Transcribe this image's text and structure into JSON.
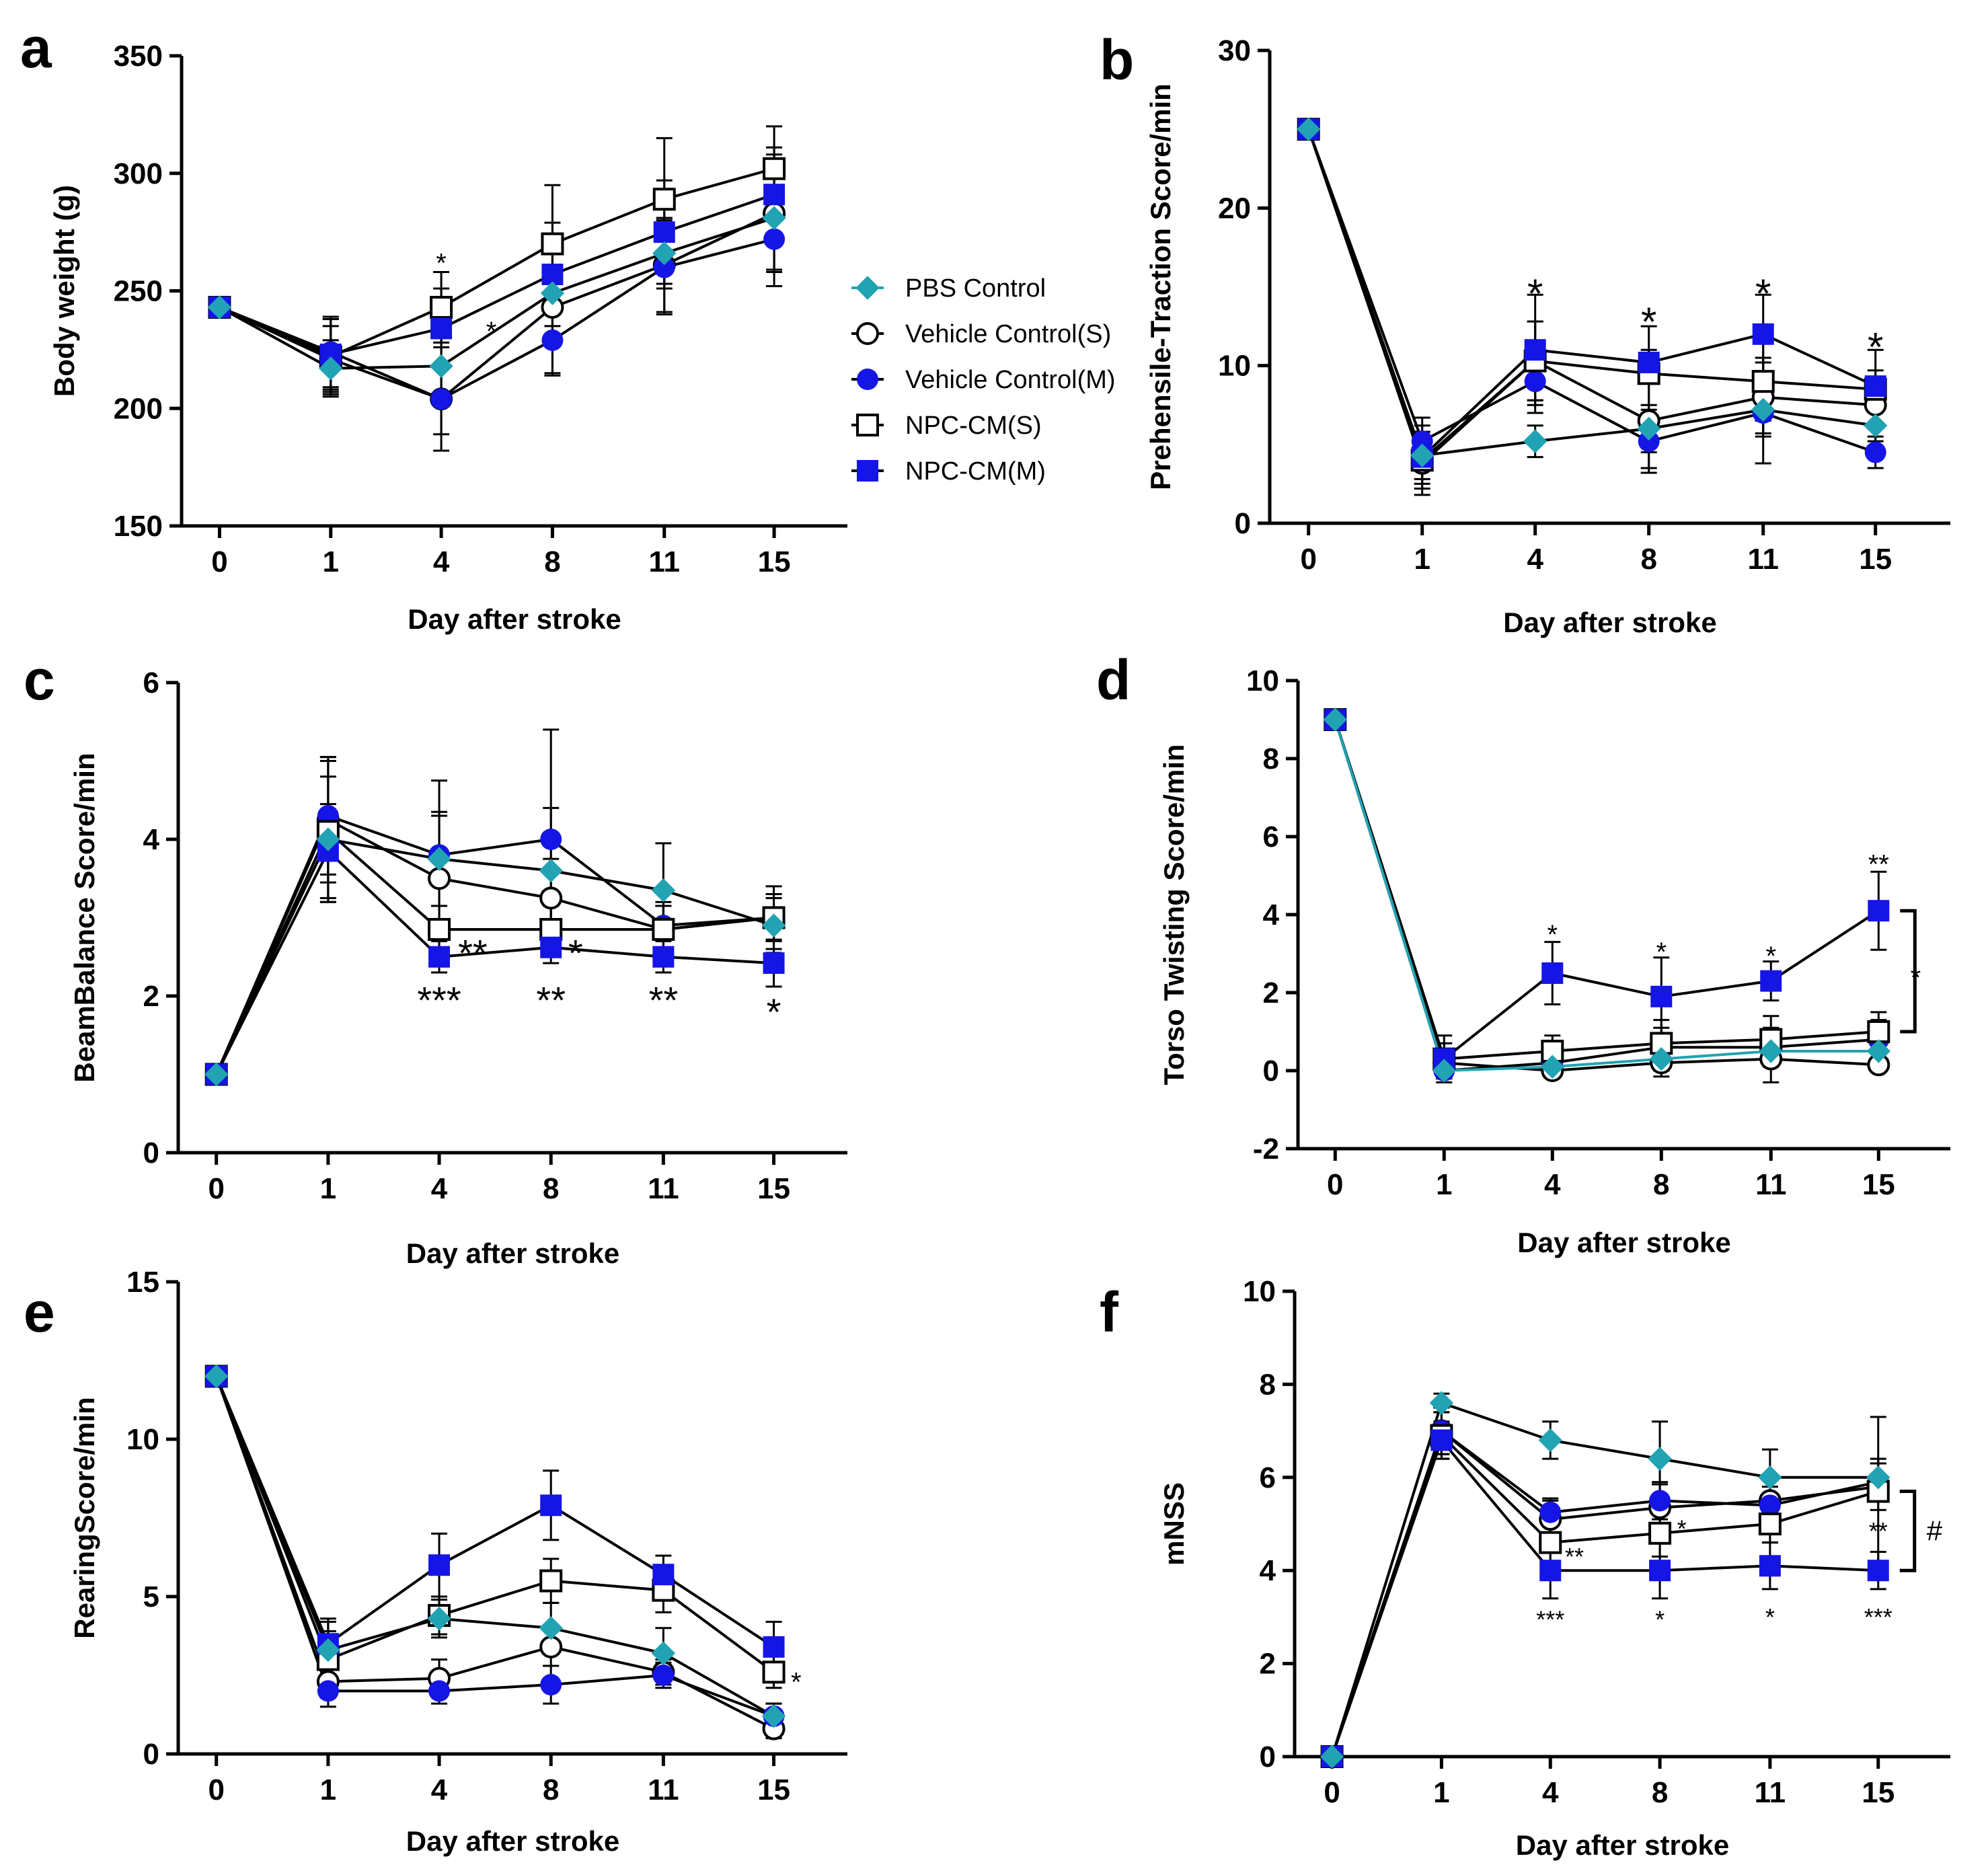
{
  "legend": [
    {
      "key": "pbs",
      "label": "PBS Control"
    },
    {
      "key": "vcs",
      "label": "Vehicle Control(S)"
    },
    {
      "key": "vcm",
      "label": "Vehicle Control(M)"
    },
    {
      "key": "npcs",
      "label": "NPC-CM(S)"
    },
    {
      "key": "npcm",
      "label": "NPC-CM(M)"
    }
  ],
  "series_styles": {
    "pbs": {
      "color": "#22a3b3",
      "marker": "diamond"
    },
    "vcs": {
      "color": "#000000",
      "marker": "open-circle"
    },
    "vcm": {
      "color": "#1515e6",
      "marker": "filled-circle"
    },
    "npcs": {
      "color": "#000000",
      "marker": "open-square"
    },
    "npcm": {
      "color": "#1515e6",
      "marker": "filled-square"
    }
  },
  "chart_data": [
    {
      "id": "a",
      "panel_label": "a",
      "type": "line",
      "xlabel": "Day after stroke",
      "ylabel": "Body weight (g)",
      "categories": [
        "0",
        "1",
        "4",
        "8",
        "11",
        "15"
      ],
      "ylim": [
        150,
        350
      ],
      "yticks": [
        150,
        200,
        250,
        300,
        350
      ],
      "series": [
        {
          "key": "pbs",
          "values": [
            243,
            217,
            218,
            249,
            266,
            281
          ],
          "errors": [
            0,
            12,
            15,
            18,
            15,
            22
          ]
        },
        {
          "key": "vcs",
          "values": [
            243,
            221,
            204,
            243,
            261,
            283
          ],
          "errors": [
            0,
            14,
            22,
            28,
            20,
            25
          ]
        },
        {
          "key": "vcm",
          "values": [
            243,
            224,
            204,
            229,
            260,
            272
          ],
          "errors": [
            0,
            15,
            15,
            15,
            20,
            20
          ]
        },
        {
          "key": "npcs",
          "values": [
            243,
            222,
            243,
            270,
            289,
            302
          ],
          "errors": [
            0,
            16,
            15,
            25,
            26,
            18
          ]
        },
        {
          "key": "npcm",
          "values": [
            243,
            223,
            234,
            257,
            275,
            291
          ],
          "errors": [
            0,
            15,
            17,
            22,
            22,
            20
          ]
        }
      ],
      "annotations": [
        {
          "text": "*",
          "x": "4",
          "y": 262,
          "size": 40
        },
        {
          "text": "*",
          "x": "4",
          "y": 233,
          "size": 40,
          "dx": 0.45
        }
      ]
    },
    {
      "id": "b",
      "panel_label": "b",
      "type": "line",
      "xlabel": "Day after stroke",
      "ylabel": "Prehensile-Traction Score/min",
      "categories": [
        "0",
        "1",
        "4",
        "8",
        "11",
        "15"
      ],
      "ylim": [
        0,
        30
      ],
      "yticks": [
        0,
        10,
        20,
        30
      ],
      "series": [
        {
          "key": "pbs",
          "values": [
            25,
            4.3,
            5.2,
            6.0,
            7.2,
            6.2
          ],
          "errors": [
            0,
            1.5,
            1.0,
            1.5,
            1.5,
            1.0
          ]
        },
        {
          "key": "vcs",
          "values": [
            25,
            3.8,
            10.3,
            6.5,
            8.0,
            7.5
          ],
          "errors": [
            0,
            2.0,
            2.5,
            3.0,
            2.5,
            1.5
          ]
        },
        {
          "key": "vcm",
          "values": [
            25,
            5.2,
            9.0,
            5.2,
            7.0,
            4.5
          ],
          "errors": [
            0,
            1.5,
            2.0,
            2.0,
            3.2,
            1.0
          ]
        },
        {
          "key": "npcs",
          "values": [
            25,
            4.0,
            10.3,
            9.5,
            9.0,
            8.5
          ],
          "errors": [
            0,
            1.5,
            2.5,
            3.0,
            2.5,
            2.5
          ]
        },
        {
          "key": "npcm",
          "values": [
            25,
            4.2,
            11.0,
            10.2,
            12.0,
            8.7
          ],
          "errors": [
            0,
            2.0,
            3.5,
            0.8,
            2.5,
            1.0
          ]
        }
      ],
      "annotations": [
        {
          "text": "*",
          "x": "4",
          "y": 14.6,
          "size": 60
        },
        {
          "text": "*",
          "x": "8",
          "y": 12.8,
          "size": 60
        },
        {
          "text": "*",
          "x": "11",
          "y": 14.6,
          "size": 60
        },
        {
          "text": "*",
          "x": "15",
          "y": 11.2,
          "size": 60
        }
      ]
    },
    {
      "id": "c",
      "panel_label": "c",
      "type": "line",
      "xlabel": "Day after stroke",
      "ylabel": "BeamBalance Score/min",
      "categories": [
        "0",
        "1",
        "4",
        "8",
        "11",
        "15"
      ],
      "ylim": [
        0,
        6
      ],
      "yticks": [
        0,
        2,
        4,
        6
      ],
      "series": [
        {
          "key": "pbs",
          "values": [
            1,
            4.0,
            3.75,
            3.6,
            3.35,
            2.9
          ],
          "errors": [
            0,
            0.8,
            0.6,
            0.8,
            0.6,
            0.35
          ]
        },
        {
          "key": "vcs",
          "values": [
            1,
            4.25,
            3.5,
            3.25,
            2.85,
            3.0
          ],
          "errors": [
            0,
            0.8,
            0.8,
            0.5,
            0.3,
            0.3
          ]
        },
        {
          "key": "vcm",
          "values": [
            1,
            4.3,
            3.8,
            4.0,
            2.9,
            3.0
          ],
          "errors": [
            0,
            0.75,
            0.95,
            1.4,
            0.3,
            0.4
          ]
        },
        {
          "key": "npcs",
          "values": [
            1,
            4.1,
            2.85,
            2.85,
            2.85,
            3.0
          ],
          "errors": [
            0,
            0.9,
            0.3,
            0.3,
            0.3,
            0.3
          ]
        },
        {
          "key": "npcm",
          "values": [
            1,
            3.85,
            2.5,
            2.62,
            2.5,
            2.42
          ],
          "errors": [
            0,
            0.6,
            0.2,
            0.2,
            0.2,
            0.3
          ]
        }
      ],
      "annotations": [
        {
          "text": "**",
          "x": "4",
          "y": 2.55,
          "size": 56,
          "dx": 0.3
        },
        {
          "text": "*",
          "x": "8",
          "y": 2.55,
          "size": 56,
          "dx": 0.22
        },
        {
          "text": "***",
          "x": "4",
          "y": 1.95,
          "size": 56
        },
        {
          "text": "**",
          "x": "8",
          "y": 1.95,
          "size": 56
        },
        {
          "text": "**",
          "x": "11",
          "y": 1.95,
          "size": 56
        },
        {
          "text": "*",
          "x": "15",
          "y": 1.8,
          "size": 56
        }
      ]
    },
    {
      "id": "d",
      "panel_label": "d",
      "type": "line",
      "xlabel": "Day after stroke",
      "ylabel": "Torso Twisting Score/min",
      "categories": [
        "0",
        "1",
        "4",
        "8",
        "11",
        "15"
      ],
      "ylim": [
        -2,
        10
      ],
      "yticks": [
        -2,
        0,
        2,
        4,
        6,
        8,
        10
      ],
      "series": [
        {
          "key": "pbs",
          "values": [
            9,
            0.0,
            0.1,
            0.3,
            0.5,
            0.5
          ],
          "errors": [
            0,
            0.2,
            0.2,
            0.3,
            0.3,
            0.3
          ]
        },
        {
          "key": "vcs",
          "values": [
            9,
            0.2,
            0.0,
            0.2,
            0.3,
            0.15
          ],
          "errors": [
            0,
            0.2,
            0.1,
            0.35,
            0.6,
            0.1
          ]
        },
        {
          "key": "vcm",
          "values": [
            9,
            0.0,
            0.2,
            0.6,
            0.6,
            0.8
          ],
          "errors": [
            0,
            0.2,
            0.2,
            0.5,
            0.5,
            0.5
          ]
        },
        {
          "key": "npcs",
          "values": [
            9,
            0.3,
            0.5,
            0.7,
            0.8,
            1.0
          ],
          "errors": [
            0,
            0.6,
            0.4,
            0.6,
            0.6,
            0.5
          ]
        },
        {
          "key": "npcm",
          "values": [
            9,
            0.3,
            2.5,
            1.9,
            2.3,
            4.1
          ],
          "errors": [
            0,
            0.4,
            0.8,
            1.0,
            0.5,
            1.0
          ]
        }
      ],
      "annotations": [
        {
          "text": "*",
          "x": "4",
          "y": 3.5,
          "size": 40
        },
        {
          "text": "*",
          "x": "8",
          "y": 3.05,
          "size": 40
        },
        {
          "text": "*",
          "x": "11",
          "y": 2.95,
          "size": 40
        },
        {
          "text": "**",
          "x": "15",
          "y": 5.3,
          "size": 40
        },
        {
          "text": "*",
          "x": "15",
          "y": 2.4,
          "size": 40,
          "dx": 0.34
        }
      ],
      "bracket": {
        "x": "15",
        "y_top": 4.1,
        "y_bottom": 1.0
      }
    },
    {
      "id": "e",
      "panel_label": "e",
      "type": "line",
      "xlabel": "Day after stroke",
      "ylabel": "RearingScore/min",
      "categories": [
        "0",
        "1",
        "4",
        "8",
        "11",
        "15"
      ],
      "ylim": [
        0,
        15
      ],
      "yticks": [
        0,
        5,
        10,
        15
      ],
      "series": [
        {
          "key": "pbs",
          "values": [
            12,
            3.3,
            4.3,
            4.0,
            3.2,
            1.2
          ],
          "errors": [
            0,
            0.6,
            0.6,
            0.8,
            0.8,
            0.4
          ]
        },
        {
          "key": "vcs",
          "values": [
            12,
            2.3,
            2.4,
            3.4,
            2.6,
            0.8
          ],
          "errors": [
            0,
            0.5,
            0.6,
            0.6,
            0.4,
            0.3
          ]
        },
        {
          "key": "vcm",
          "values": [
            12,
            2.0,
            2.0,
            2.2,
            2.5,
            1.2
          ],
          "errors": [
            0,
            0.5,
            0.4,
            0.6,
            0.4,
            0.4
          ]
        },
        {
          "key": "npcs",
          "values": [
            12,
            3.0,
            4.4,
            5.5,
            5.2,
            2.6
          ],
          "errors": [
            0,
            1.2,
            0.6,
            0.7,
            0.7,
            0.5
          ]
        },
        {
          "key": "npcm",
          "values": [
            12,
            3.5,
            6.0,
            7.9,
            5.7,
            3.4
          ],
          "errors": [
            0,
            0.8,
            1.0,
            1.1,
            0.6,
            0.8
          ]
        }
      ],
      "annotations": [
        {
          "text": "*",
          "x": "15",
          "y": 2.3,
          "size": 40,
          "dx": 0.2
        }
      ]
    },
    {
      "id": "f",
      "panel_label": "f",
      "type": "line",
      "xlabel": "Day after stroke",
      "ylabel": "mNSS",
      "categories": [
        "0",
        "1",
        "4",
        "8",
        "11",
        "15"
      ],
      "ylim": [
        0,
        10
      ],
      "yticks": [
        0,
        2,
        4,
        6,
        8,
        10
      ],
      "series": [
        {
          "key": "pbs",
          "values": [
            0,
            7.6,
            6.8,
            6.4,
            6.0,
            6.0
          ],
          "errors": [
            0,
            0.2,
            0.4,
            0.8,
            0.6,
            0.4
          ]
        },
        {
          "key": "vcs",
          "values": [
            0,
            7.0,
            5.1,
            5.35,
            5.5,
            5.8
          ],
          "errors": [
            0,
            0.5,
            0.4,
            0.5,
            0.5,
            0.5
          ]
        },
        {
          "key": "vcm",
          "values": [
            0,
            7.0,
            5.25,
            5.5,
            5.4,
            5.9
          ],
          "errors": [
            0,
            0.5,
            0.3,
            0.4,
            0.4,
            0.4
          ]
        },
        {
          "key": "npcs",
          "values": [
            0,
            6.9,
            4.6,
            4.8,
            5.0,
            5.7
          ],
          "errors": [
            0,
            0.5,
            0.4,
            0.5,
            0.4,
            1.6
          ]
        },
        {
          "key": "npcm",
          "values": [
            0,
            6.8,
            4.0,
            4.0,
            4.1,
            4.0
          ],
          "errors": [
            0,
            0.4,
            0.6,
            0.6,
            0.5,
            0.4
          ]
        }
      ],
      "annotations": [
        {
          "text": "*",
          "x": "8",
          "y": 4.9,
          "size": 36,
          "dx": 0.2
        },
        {
          "text": "**",
          "x": "4",
          "y": 4.3,
          "size": 36,
          "dx": 0.22
        },
        {
          "text": "**",
          "x": "15",
          "y": 4.85,
          "size": 36
        },
        {
          "text": "***",
          "x": "4",
          "y": 2.95,
          "size": 36
        },
        {
          "text": "*",
          "x": "8",
          "y": 2.95,
          "size": 36
        },
        {
          "text": "*",
          "x": "11",
          "y": 3.0,
          "size": 36
        },
        {
          "text": "***",
          "x": "15",
          "y": 3.0,
          "size": 36
        }
      ],
      "bracket": {
        "x": "15",
        "y_top": 5.7,
        "y_bottom": 4.0,
        "text": "#"
      }
    }
  ]
}
